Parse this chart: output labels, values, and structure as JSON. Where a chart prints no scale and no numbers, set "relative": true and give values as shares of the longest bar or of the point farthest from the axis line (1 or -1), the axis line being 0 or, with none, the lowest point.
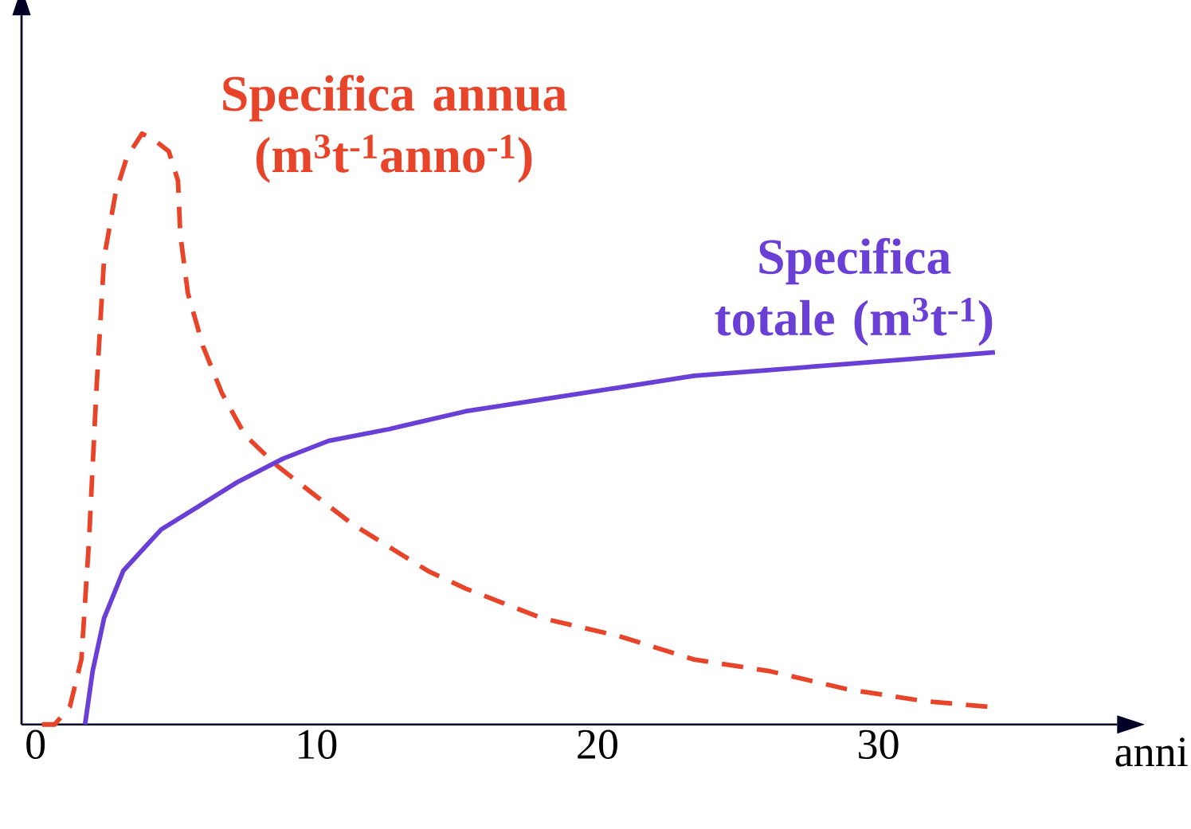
{
  "chart_data": {
    "type": "line",
    "xlabel": "anni",
    "relative": true,
    "xlim": [
      -0.5,
      38.5
    ],
    "xticks": [
      0,
      10,
      20,
      30
    ],
    "grid": false,
    "legend": false,
    "marker": "none",
    "series": [
      {
        "name": "Specifica annua (m$^{3}$t$^{-1}$anno$^{-1}$)",
        "color": "#e8442a",
        "line_style": "dashed",
        "x": [
          -0.14,
          0.68,
          1.22,
          1.63,
          1.9,
          2.17,
          2.44,
          2.85,
          3.25,
          3.79,
          4.2,
          4.74,
          5.07,
          5.15,
          5.42,
          5.96,
          6.64,
          7.45,
          8.54,
          9.89,
          11.25,
          12.6,
          13.96,
          15.31,
          18.02,
          20.73,
          23.44,
          26.15,
          28.86,
          31.57,
          33.88
        ],
        "values": [
          0,
          0,
          0.03,
          0.11,
          0.31,
          0.57,
          0.79,
          0.9,
          0.96,
          1.0,
          0.99,
          0.97,
          0.92,
          0.83,
          0.73,
          0.64,
          0.56,
          0.49,
          0.44,
          0.39,
          0.34,
          0.3,
          0.26,
          0.23,
          0.18,
          0.15,
          0.11,
          0.09,
          0.06,
          0.04,
          0.03
        ]
      },
      {
        "name": "Specifica totale (m$^{3}$t$^{-1}$)",
        "color": "#6a3fd6",
        "line_style": "solid",
        "x": [
          1.76,
          2.03,
          2.44,
          3.12,
          4.47,
          5.83,
          7.18,
          8.81,
          10.43,
          12.6,
          15.31,
          18.02,
          20.73,
          23.44,
          26.15,
          28.86,
          31.57,
          34.15
        ],
        "values": [
          0,
          0.09,
          0.18,
          0.26,
          0.33,
          0.37,
          0.41,
          0.45,
          0.48,
          0.5,
          0.53,
          0.55,
          0.57,
          0.59,
          0.6,
          0.61,
          0.62,
          0.63
        ]
      }
    ]
  }
}
